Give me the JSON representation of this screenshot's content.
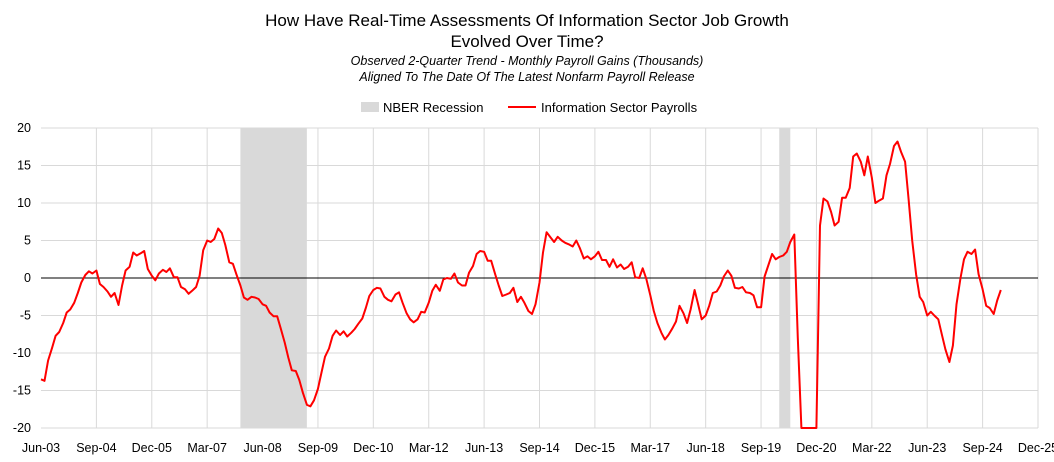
{
  "title_line1": "How Have Real-Time Assessments Of Information Sector Job Growth",
  "title_line2": "Evolved Over Time?",
  "subtitle_line1": "Observed 2-Quarter Trend - Monthly Payroll Gains (Thousands)",
  "subtitle_line2": "Aligned To The Date Of The Latest Nonfarm Payroll Release",
  "legend": {
    "recession": "NBER Recession",
    "series": "Information Sector Payrolls"
  },
  "colors": {
    "series": "#ff0000",
    "recession": "#d9d9d9",
    "grid": "#d9d9d9",
    "zero": "#000000"
  },
  "chart_data": {
    "type": "line",
    "title": "How Have Real-Time Assessments Of Information Sector Job Growth Evolved Over Time?",
    "xlabel": "",
    "ylabel": "",
    "ylim": [
      -20,
      20
    ],
    "yticks": [
      20,
      15,
      10,
      5,
      0,
      -5,
      -10,
      -15,
      -20
    ],
    "x_range": [
      2003.42,
      2025.92
    ],
    "x_ticks": [
      {
        "x": 2003.42,
        "label": "Jun-03"
      },
      {
        "x": 2004.67,
        "label": "Sep-04"
      },
      {
        "x": 2005.92,
        "label": "Dec-05"
      },
      {
        "x": 2007.17,
        "label": "Mar-07"
      },
      {
        "x": 2008.42,
        "label": "Jun-08"
      },
      {
        "x": 2009.67,
        "label": "Sep-09"
      },
      {
        "x": 2010.92,
        "label": "Dec-10"
      },
      {
        "x": 2012.17,
        "label": "Mar-12"
      },
      {
        "x": 2013.42,
        "label": "Jun-13"
      },
      {
        "x": 2014.67,
        "label": "Sep-14"
      },
      {
        "x": 2015.92,
        "label": "Dec-15"
      },
      {
        "x": 2017.17,
        "label": "Mar-17"
      },
      {
        "x": 2018.42,
        "label": "Jun-18"
      },
      {
        "x": 2019.67,
        "label": "Sep-19"
      },
      {
        "x": 2020.92,
        "label": "Dec-20"
      },
      {
        "x": 2022.17,
        "label": "Mar-22"
      },
      {
        "x": 2023.42,
        "label": "Jun-23"
      },
      {
        "x": 2024.67,
        "label": "Sep-24"
      },
      {
        "x": 2025.92,
        "label": "Dec-25"
      }
    ],
    "recessions": [
      {
        "start": 2007.92,
        "end": 2009.42
      },
      {
        "start": 2020.08,
        "end": 2020.33
      }
    ],
    "series": [
      {
        "name": "Information Sector Payrolls",
        "points": [
          [
            2003.42,
            -13.5
          ],
          [
            2003.5,
            -13.7
          ],
          [
            2003.58,
            -11.0
          ],
          [
            2003.67,
            -9.3
          ],
          [
            2003.75,
            -7.7
          ],
          [
            2003.83,
            -7.2
          ],
          [
            2003.92,
            -6.0
          ],
          [
            2004.0,
            -4.6
          ],
          [
            2004.08,
            -4.2
          ],
          [
            2004.17,
            -3.3
          ],
          [
            2004.25,
            -2.0
          ],
          [
            2004.33,
            -0.6
          ],
          [
            2004.42,
            0.4
          ],
          [
            2004.5,
            0.9
          ],
          [
            2004.58,
            0.6
          ],
          [
            2004.67,
            1.0
          ],
          [
            2004.75,
            -0.8
          ],
          [
            2004.83,
            -1.2
          ],
          [
            2004.92,
            -1.8
          ],
          [
            2005.0,
            -2.5
          ],
          [
            2005.08,
            -2.0
          ],
          [
            2005.17,
            -3.6
          ],
          [
            2005.25,
            -1.0
          ],
          [
            2005.33,
            1.0
          ],
          [
            2005.42,
            1.5
          ],
          [
            2005.5,
            3.4
          ],
          [
            2005.58,
            3.0
          ],
          [
            2005.67,
            3.3
          ],
          [
            2005.75,
            3.6
          ],
          [
            2005.83,
            1.2
          ],
          [
            2005.92,
            0.3
          ],
          [
            2006.0,
            -0.3
          ],
          [
            2006.08,
            0.6
          ],
          [
            2006.17,
            1.1
          ],
          [
            2006.25,
            0.8
          ],
          [
            2006.33,
            1.3
          ],
          [
            2006.42,
            0.1
          ],
          [
            2006.5,
            0.1
          ],
          [
            2006.58,
            -1.2
          ],
          [
            2006.67,
            -1.5
          ],
          [
            2006.75,
            -2.1
          ],
          [
            2006.83,
            -1.7
          ],
          [
            2006.92,
            -1.2
          ],
          [
            2007.0,
            0.3
          ],
          [
            2007.08,
            3.7
          ],
          [
            2007.17,
            5.0
          ],
          [
            2007.25,
            4.8
          ],
          [
            2007.33,
            5.2
          ],
          [
            2007.42,
            6.6
          ],
          [
            2007.5,
            6.0
          ],
          [
            2007.58,
            4.4
          ],
          [
            2007.67,
            2.1
          ],
          [
            2007.75,
            1.9
          ],
          [
            2007.83,
            0.5
          ],
          [
            2007.92,
            -1.0
          ],
          [
            2008.0,
            -2.6
          ],
          [
            2008.08,
            -2.9
          ],
          [
            2008.17,
            -2.5
          ],
          [
            2008.25,
            -2.6
          ],
          [
            2008.33,
            -2.8
          ],
          [
            2008.42,
            -3.5
          ],
          [
            2008.5,
            -3.7
          ],
          [
            2008.58,
            -4.6
          ],
          [
            2008.67,
            -5.1
          ],
          [
            2008.75,
            -5.1
          ],
          [
            2008.83,
            -6.7
          ],
          [
            2008.92,
            -8.6
          ],
          [
            2009.0,
            -10.6
          ],
          [
            2009.08,
            -12.3
          ],
          [
            2009.17,
            -12.4
          ],
          [
            2009.25,
            -13.6
          ],
          [
            2009.33,
            -15.3
          ],
          [
            2009.42,
            -16.9
          ],
          [
            2009.5,
            -17.1
          ],
          [
            2009.58,
            -16.3
          ],
          [
            2009.67,
            -14.8
          ],
          [
            2009.75,
            -12.6
          ],
          [
            2009.83,
            -10.5
          ],
          [
            2009.92,
            -9.4
          ],
          [
            2010.0,
            -7.7
          ],
          [
            2010.08,
            -7.0
          ],
          [
            2010.17,
            -7.6
          ],
          [
            2010.25,
            -7.1
          ],
          [
            2010.33,
            -7.8
          ],
          [
            2010.42,
            -7.3
          ],
          [
            2010.5,
            -6.8
          ],
          [
            2010.58,
            -6.1
          ],
          [
            2010.67,
            -5.4
          ],
          [
            2010.75,
            -4.0
          ],
          [
            2010.83,
            -2.4
          ],
          [
            2010.92,
            -1.6
          ],
          [
            2011.0,
            -1.3
          ],
          [
            2011.08,
            -1.4
          ],
          [
            2011.17,
            -2.5
          ],
          [
            2011.25,
            -2.9
          ],
          [
            2011.33,
            -3.1
          ],
          [
            2011.42,
            -2.2
          ],
          [
            2011.5,
            -1.9
          ],
          [
            2011.58,
            -3.3
          ],
          [
            2011.67,
            -4.7
          ],
          [
            2011.75,
            -5.5
          ],
          [
            2011.83,
            -5.9
          ],
          [
            2011.92,
            -5.5
          ],
          [
            2012.0,
            -4.5
          ],
          [
            2012.08,
            -4.6
          ],
          [
            2012.17,
            -3.3
          ],
          [
            2012.25,
            -1.7
          ],
          [
            2012.33,
            -0.9
          ],
          [
            2012.42,
            -1.7
          ],
          [
            2012.5,
            -0.2
          ],
          [
            2012.58,
            0.0
          ],
          [
            2012.67,
            -0.1
          ],
          [
            2012.75,
            0.6
          ],
          [
            2012.83,
            -0.6
          ],
          [
            2012.92,
            -1.0
          ],
          [
            2013.0,
            -1.0
          ],
          [
            2013.08,
            0.7
          ],
          [
            2013.17,
            1.6
          ],
          [
            2013.25,
            3.2
          ],
          [
            2013.33,
            3.6
          ],
          [
            2013.42,
            3.5
          ],
          [
            2013.5,
            2.3
          ],
          [
            2013.58,
            2.3
          ],
          [
            2013.67,
            0.5
          ],
          [
            2013.75,
            -1.0
          ],
          [
            2013.83,
            -2.4
          ],
          [
            2013.92,
            -2.2
          ],
          [
            2014.0,
            -2.0
          ],
          [
            2014.08,
            -1.3
          ],
          [
            2014.17,
            -3.2
          ],
          [
            2014.25,
            -2.5
          ],
          [
            2014.33,
            -3.3
          ],
          [
            2014.42,
            -4.4
          ],
          [
            2014.5,
            -4.8
          ],
          [
            2014.58,
            -3.5
          ],
          [
            2014.67,
            -0.6
          ],
          [
            2014.75,
            3.4
          ],
          [
            2014.83,
            6.1
          ],
          [
            2014.92,
            5.4
          ],
          [
            2015.0,
            4.8
          ],
          [
            2015.08,
            5.5
          ],
          [
            2015.17,
            5.0
          ],
          [
            2015.25,
            4.7
          ],
          [
            2015.33,
            4.5
          ],
          [
            2015.42,
            4.2
          ],
          [
            2015.5,
            5.0
          ],
          [
            2015.58,
            4.0
          ],
          [
            2015.67,
            2.6
          ],
          [
            2015.75,
            2.9
          ],
          [
            2015.83,
            2.5
          ],
          [
            2015.92,
            2.9
          ],
          [
            2016.0,
            3.5
          ],
          [
            2016.08,
            2.4
          ],
          [
            2016.17,
            2.4
          ],
          [
            2016.25,
            1.5
          ],
          [
            2016.33,
            2.5
          ],
          [
            2016.42,
            1.4
          ],
          [
            2016.5,
            1.8
          ],
          [
            2016.58,
            1.2
          ],
          [
            2016.67,
            1.5
          ],
          [
            2016.75,
            2.1
          ],
          [
            2016.83,
            0.1
          ],
          [
            2016.92,
            0.0
          ],
          [
            2017.0,
            1.3
          ],
          [
            2017.08,
            -0.1
          ],
          [
            2017.17,
            -2.3
          ],
          [
            2017.25,
            -4.4
          ],
          [
            2017.33,
            -6.0
          ],
          [
            2017.42,
            -7.3
          ],
          [
            2017.5,
            -8.2
          ],
          [
            2017.58,
            -7.6
          ],
          [
            2017.67,
            -6.7
          ],
          [
            2017.75,
            -5.8
          ],
          [
            2017.83,
            -3.7
          ],
          [
            2017.92,
            -4.7
          ],
          [
            2018.0,
            -6.0
          ],
          [
            2018.08,
            -4.2
          ],
          [
            2018.17,
            -1.6
          ],
          [
            2018.25,
            -3.5
          ],
          [
            2018.33,
            -5.5
          ],
          [
            2018.42,
            -5.0
          ],
          [
            2018.5,
            -3.7
          ],
          [
            2018.58,
            -2.0
          ],
          [
            2018.67,
            -1.8
          ],
          [
            2018.75,
            -1.0
          ],
          [
            2018.83,
            0.2
          ],
          [
            2018.92,
            1.0
          ],
          [
            2019.0,
            0.3
          ],
          [
            2019.08,
            -1.3
          ],
          [
            2019.17,
            -1.4
          ],
          [
            2019.25,
            -1.2
          ],
          [
            2019.33,
            -1.9
          ],
          [
            2019.42,
            -2.0
          ],
          [
            2019.5,
            -2.3
          ],
          [
            2019.58,
            -3.9
          ],
          [
            2019.67,
            -3.9
          ],
          [
            2019.75,
            0.2
          ],
          [
            2019.83,
            1.6
          ],
          [
            2019.92,
            3.2
          ],
          [
            2020.0,
            2.5
          ],
          [
            2020.08,
            2.8
          ],
          [
            2020.17,
            3.0
          ],
          [
            2020.25,
            3.5
          ],
          [
            2020.33,
            4.8
          ],
          [
            2020.42,
            5.8
          ],
          [
            2020.5,
            -8.0
          ],
          [
            2020.58,
            -20.0
          ],
          [
            2020.92,
            -20.0
          ],
          [
            2021.0,
            7.0
          ],
          [
            2021.08,
            10.6
          ],
          [
            2021.17,
            10.2
          ],
          [
            2021.25,
            8.8
          ],
          [
            2021.33,
            7.0
          ],
          [
            2021.42,
            7.5
          ],
          [
            2021.5,
            10.7
          ],
          [
            2021.58,
            10.7
          ],
          [
            2021.67,
            12.0
          ],
          [
            2021.75,
            16.2
          ],
          [
            2021.83,
            16.6
          ],
          [
            2021.92,
            15.5
          ],
          [
            2022.0,
            13.7
          ],
          [
            2022.08,
            16.2
          ],
          [
            2022.17,
            13.4
          ],
          [
            2022.25,
            10.0
          ],
          [
            2022.33,
            10.3
          ],
          [
            2022.42,
            10.6
          ],
          [
            2022.5,
            13.7
          ],
          [
            2022.58,
            15.2
          ],
          [
            2022.67,
            17.6
          ],
          [
            2022.75,
            18.2
          ],
          [
            2022.83,
            16.8
          ],
          [
            2022.92,
            15.5
          ],
          [
            2023.0,
            10.5
          ],
          [
            2023.08,
            5.0
          ],
          [
            2023.17,
            0.5
          ],
          [
            2023.25,
            -2.5
          ],
          [
            2023.33,
            -3.2
          ],
          [
            2023.42,
            -5.0
          ],
          [
            2023.5,
            -4.5
          ],
          [
            2023.58,
            -5.0
          ],
          [
            2023.67,
            -5.5
          ],
          [
            2023.75,
            -7.5
          ],
          [
            2023.83,
            -9.5
          ],
          [
            2023.92,
            -11.2
          ],
          [
            2024.0,
            -9.0
          ],
          [
            2024.08,
            -3.5
          ],
          [
            2024.17,
            0.0
          ],
          [
            2024.25,
            2.5
          ],
          [
            2024.33,
            3.5
          ],
          [
            2024.42,
            3.2
          ],
          [
            2024.5,
            3.8
          ],
          [
            2024.58,
            0.5
          ],
          [
            2024.67,
            -1.5
          ],
          [
            2024.75,
            -3.7
          ],
          [
            2024.83,
            -4.0
          ],
          [
            2024.92,
            -4.8
          ],
          [
            2025.0,
            -3.0
          ],
          [
            2025.08,
            -1.6
          ]
        ]
      }
    ]
  }
}
